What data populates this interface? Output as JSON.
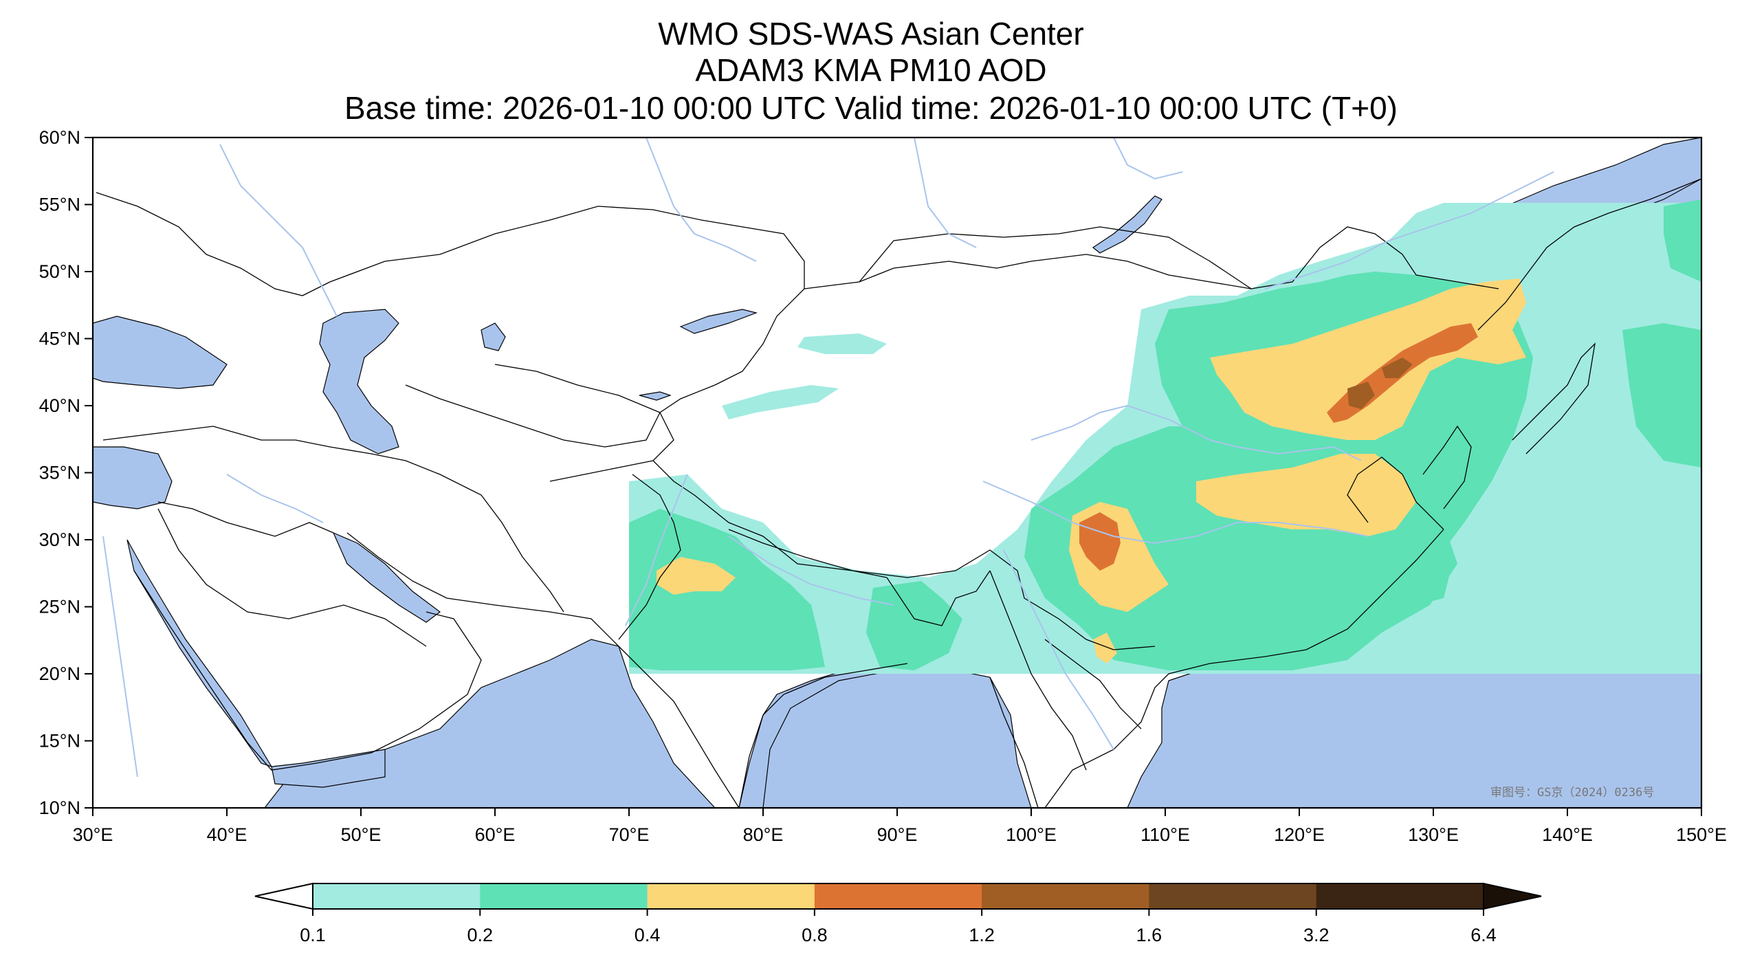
{
  "title": {
    "line1": "WMO SDS-WAS Asian Center",
    "line2": "ADAM3 KMA PM10 AOD",
    "line3": "Base time: 2026-01-10 00:00 UTC Valid time: 2026-01-10 00:00 UTC (T+0)"
  },
  "map": {
    "lon_range": [
      30,
      150
    ],
    "lat_range": [
      10,
      60
    ],
    "x_ticks": [
      "30°E",
      "40°E",
      "50°E",
      "60°E",
      "70°E",
      "80°E",
      "90°E",
      "100°E",
      "110°E",
      "120°E",
      "130°E",
      "140°E",
      "150°E"
    ],
    "y_ticks": [
      "10°N",
      "15°N",
      "20°N",
      "25°N",
      "30°N",
      "35°N",
      "40°N",
      "45°N",
      "50°N",
      "55°N",
      "60°N"
    ],
    "stamp": "审图号：GS京（2024）0236号",
    "colors": {
      "ocean": "#a9c4ec",
      "land": "#ffffff",
      "border": "#000000",
      "river": "#a9c4ec"
    }
  },
  "colorbar": {
    "levels": [
      "0.1",
      "0.2",
      "0.4",
      "0.8",
      "1.2",
      "1.6",
      "3.2",
      "6.4"
    ],
    "colors": [
      "#a2ebe1",
      "#5ee1b5",
      "#fbd778",
      "#dd7333",
      "#a05e24",
      "#6d4520",
      "#3a2413"
    ],
    "under_color": "#ffffff",
    "over_color": "#1a1008"
  }
}
